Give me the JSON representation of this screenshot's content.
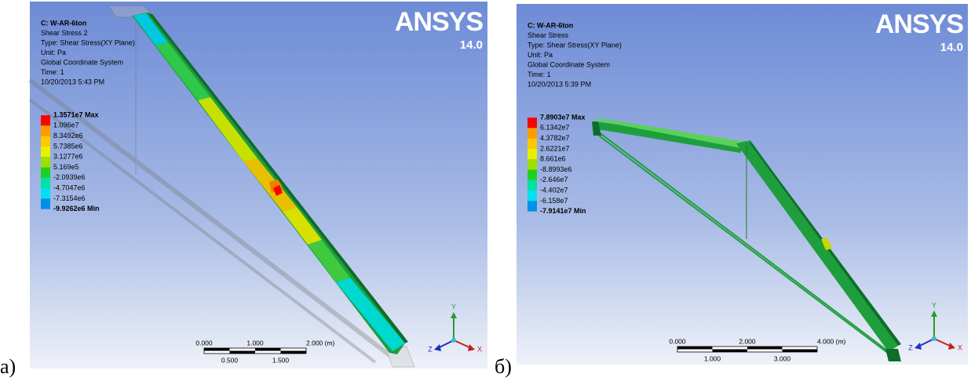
{
  "panels": [
    {
      "label": "а)",
      "info": [
        "C: W-AR-6ton",
        "Shear Stress 2",
        "Type: Shear Stress(XY Plane)",
        "Unit: Pa",
        "Global Coordinate System",
        "Time: 1",
        "10/20/2013 5:43 PM"
      ],
      "legend": {
        "labels": [
          "1.3571e7 Max",
          "1.096e7",
          "8.3492e6",
          "5.7385e6",
          "3.1277e6",
          "5.169e5",
          "-2.0939e6",
          "-4.7047e6",
          "-7.3154e6",
          "-9.9262e6 Min"
        ],
        "colors": [
          "#ff0000",
          "#ff9a00",
          "#ffc800",
          "#e8f000",
          "#9ee000",
          "#20d020",
          "#00e0a8",
          "#00e0f0",
          "#0090e8"
        ]
      },
      "logo": "ANSYS",
      "version": "14.0",
      "scale": {
        "top": [
          "0.000",
          "1.000",
          "2.000 (m)"
        ],
        "bottom": [
          "0.500",
          "1.500"
        ]
      },
      "axes": {
        "y": "Y",
        "z": "Z",
        "x": "X"
      }
    },
    {
      "label": "б)",
      "info": [
        "C: W-AR-6ton",
        "Shear Stress",
        "Type: Shear Stress(XY Plane)",
        "Unit: Pa",
        "Global Coordinate System",
        "Time: 1",
        "10/20/2013 5:39 PM"
      ],
      "legend": {
        "labels": [
          "7.8903e7 Max",
          "6.1342e7",
          "4.3782e7",
          "2.6221e7",
          "8.661e6",
          "-8.8993e6",
          "-2.646e7",
          "-4.402e7",
          "-6.158e7",
          "-7.9141e7 Min"
        ],
        "colors": [
          "#ff0000",
          "#ff9a00",
          "#ffc800",
          "#e8f000",
          "#9ee000",
          "#20d020",
          "#00e0a8",
          "#00e0f0",
          "#0090e8"
        ]
      },
      "logo": "ANSYS",
      "version": "14.0",
      "scale": {
        "top": [
          "0.000",
          "2.000",
          "4.000 (m)"
        ],
        "bottom": [
          "1.000",
          "3.000"
        ]
      },
      "axes": {
        "y": "Y",
        "z": "Z",
        "x": "X"
      }
    }
  ]
}
